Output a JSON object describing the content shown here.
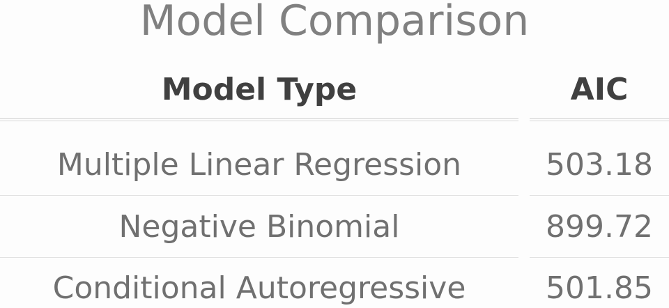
{
  "title": "Model Comparison",
  "table": {
    "headers": [
      "Model Type",
      "AIC"
    ],
    "rows": [
      {
        "model": "Multiple Linear Regression",
        "aic": "503.18"
      },
      {
        "model": "Negative Binomial",
        "aic": "899.72"
      },
      {
        "model": "Conditional Autoregressive",
        "aic": "501.85"
      }
    ]
  }
}
